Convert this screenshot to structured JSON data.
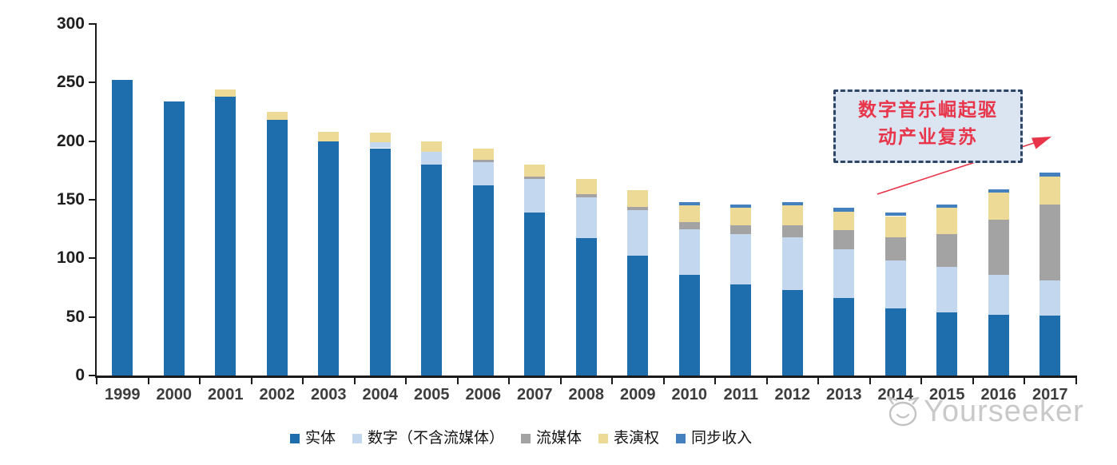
{
  "chart_data": {
    "type": "bar",
    "stacked": true,
    "title": "",
    "xlabel": "",
    "ylabel": "",
    "grid": false,
    "legend_position": "bottom",
    "ylim": [
      0,
      300
    ],
    "y_ticks": [
      0,
      50,
      100,
      150,
      200,
      250,
      300
    ],
    "categories": [
      "1999",
      "2000",
      "2001",
      "2002",
      "2003",
      "2004",
      "2005",
      "2006",
      "2007",
      "2008",
      "2009",
      "2010",
      "2011",
      "2012",
      "2013",
      "2014",
      "2015",
      "2016",
      "2017"
    ],
    "series": [
      {
        "name": "实体",
        "key": "physical",
        "color": "#1E6DAC",
        "values": [
          252,
          234,
          238,
          218,
          200,
          194,
          180,
          162,
          139,
          117,
          102,
          86,
          78,
          73,
          66,
          57,
          54,
          52,
          51
        ]
      },
      {
        "name": "数字（不含流媒体）",
        "key": "digital-excl-streaming",
        "color": "#C3D7EF",
        "values": [
          0,
          0,
          0,
          0,
          0,
          5,
          11,
          20,
          29,
          35,
          39,
          39,
          43,
          45,
          42,
          41,
          39,
          34,
          30
        ]
      },
      {
        "name": "流媒体",
        "key": "streaming",
        "color": "#A3A3A3",
        "values": [
          0,
          0,
          0,
          0,
          0,
          0,
          0,
          2,
          2,
          3,
          3,
          6,
          7,
          10,
          16,
          20,
          28,
          47,
          65
        ]
      },
      {
        "name": "表演权",
        "key": "performance-rights",
        "color": "#EDDA97",
        "values": [
          0,
          0,
          6,
          7,
          8,
          8,
          9,
          10,
          10,
          13,
          14,
          14,
          15,
          17,
          16,
          18,
          22,
          23,
          24
        ]
      },
      {
        "name": "同步收入",
        "key": "sync-revenue",
        "color": "#4580BE",
        "values": [
          0,
          0,
          0,
          0,
          0,
          0,
          0,
          0,
          0,
          0,
          0,
          3,
          3,
          3,
          3,
          3,
          3,
          3,
          3
        ]
      }
    ]
  },
  "annotation": {
    "text": "数字音乐崛起驱动产业复苏",
    "line1": "数字音乐崛起驱",
    "line2": "动产业复苏",
    "fill": "#DBE5F2",
    "border_color": "#2E4566",
    "text_color": "#E8354A",
    "arrow_color": "#E8354A"
  },
  "watermark": {
    "label": "Yourseeker"
  }
}
